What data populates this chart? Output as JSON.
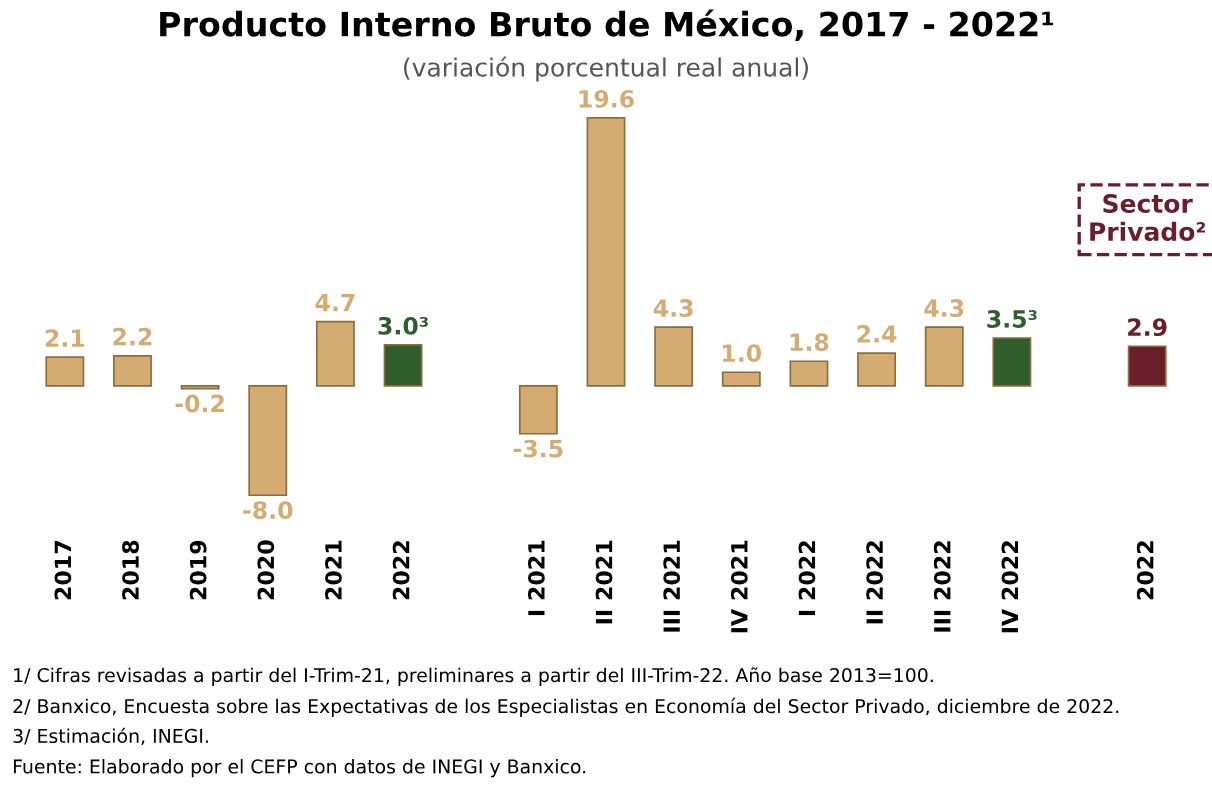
{
  "chart_data": {
    "type": "bar",
    "title": "Producto Interno Bruto de México, 2017 - 2022¹",
    "subtitle": "(variación porcentual real anual)",
    "categories": [
      "2017",
      "2018",
      "2019",
      "2020",
      "2021",
      "2022",
      null,
      "I 2021",
      "II 2021",
      "III 2021",
      "IV 2021",
      "I 2022",
      "II 2022",
      "III 2022",
      "IV 2022",
      null,
      "2022"
    ],
    "values": [
      2.1,
      2.2,
      -0.2,
      -8.0,
      4.7,
      3.0,
      null,
      -3.5,
      19.6,
      4.3,
      1.0,
      1.8,
      2.4,
      4.3,
      3.5,
      null,
      2.9
    ],
    "colors": [
      "#d4ac72",
      "#d4ac72",
      "#d4ac72",
      "#d4ac72",
      "#d4ac72",
      "#2f5d2c",
      null,
      "#d4ac72",
      "#d4ac72",
      "#d4ac72",
      "#d4ac72",
      "#d4ac72",
      "#d4ac72",
      "#d4ac72",
      "#2f5d2c",
      null,
      "#6a1e2c"
    ],
    "value_labels": [
      "2.1",
      "2.2",
      "-0.2",
      "-8.0",
      "4.7",
      "3.0³",
      null,
      "-3.5",
      "19.6",
      "4.3",
      "1.0",
      "1.8",
      "2.4",
      "4.3",
      "3.5³",
      null,
      "2.9"
    ],
    "annotations": [
      "Sector\nPrivado²",
      "1/ Cifras revisadas a partir del I-Trim-21, preliminares a partir del III-Trim-22. Año base 2013=100.",
      "2/ Banxico, Encuesta sobre las Expectativas de los Especialistas en Economía del Sector Privado, diciembre de 2022.",
      "3/ Estimación, INEGI.",
      "Fuente: Elaborado por el CEFP con datos de INEGI y Banxico."
    ],
    "grid": false,
    "legend": false
  }
}
